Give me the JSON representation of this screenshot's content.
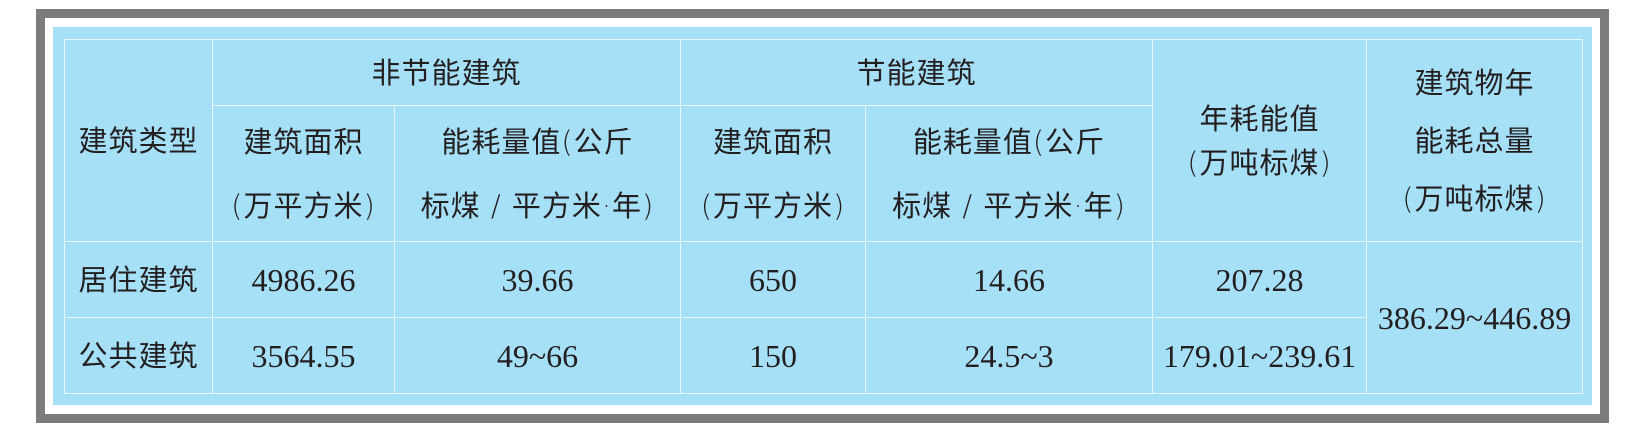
{
  "table": {
    "header": {
      "type_col": "建筑类型",
      "non_energy_saving": "非节能建筑",
      "energy_saving": "节能建筑",
      "annual_consumption": [
        "年耗能值",
        "(万吨标煤)"
      ],
      "total_consumption": [
        "建筑物年",
        "能耗总量",
        "(万吨标煤)"
      ],
      "area": [
        "建筑面积",
        "(万平方米)"
      ],
      "intensity": [
        "能耗量值(公斤",
        "标煤 / 平方米·年)"
      ]
    },
    "rows": [
      {
        "type": "居住建筑",
        "non_area": "4986.26",
        "non_intensity": "39.66",
        "es_area": "650",
        "es_intensity": "14.66",
        "annual": "207.28"
      },
      {
        "type": "公共建筑",
        "non_area": "3564.55",
        "non_intensity": "49~66",
        "es_area": "150",
        "es_intensity": "24.5~3",
        "annual": "179.01~239.61"
      }
    ],
    "total": "386.29~446.89"
  }
}
